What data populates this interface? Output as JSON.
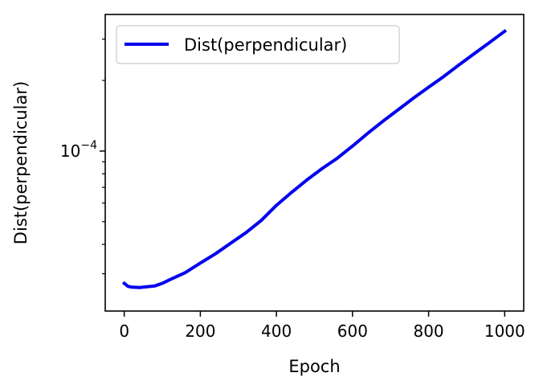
{
  "chart_data": {
    "type": "line",
    "xlabel": "Epoch",
    "ylabel": "Dist(perpendicular)",
    "xlim": [
      -50,
      1050
    ],
    "ylim": [
      2.08e-05,
      0.000382
    ],
    "yscale": "log",
    "grid": false,
    "legend_position": "top-left",
    "x_ticks": [
      {
        "value": 0,
        "label": "0"
      },
      {
        "value": 200,
        "label": "200"
      },
      {
        "value": 400,
        "label": "400"
      },
      {
        "value": 600,
        "label": "600"
      },
      {
        "value": 800,
        "label": "800"
      },
      {
        "value": 1000,
        "label": "1000"
      }
    ],
    "y_major_ticks": [
      {
        "value": 0.0001,
        "base": "10",
        "exponent": "−4"
      }
    ],
    "y_minor_ticks": [
      3e-05,
      4e-05,
      5e-05,
      6e-05,
      7e-05,
      8e-05,
      9e-05,
      0.0002,
      0.0003
    ],
    "series": [
      {
        "name": "Dist(perpendicular)",
        "color": "#0000ee",
        "x": [
          0,
          10,
          20,
          40,
          60,
          80,
          100,
          120,
          160,
          200,
          240,
          280,
          320,
          360,
          400,
          440,
          480,
          520,
          560,
          600,
          640,
          680,
          720,
          760,
          800,
          840,
          880,
          920,
          960,
          1000
        ],
        "y": [
          2.73e-05,
          2.65e-05,
          2.63e-05,
          2.62e-05,
          2.64e-05,
          2.66e-05,
          2.73e-05,
          2.83e-05,
          3.03e-05,
          3.33e-05,
          3.65e-05,
          4.05e-05,
          4.49e-05,
          5.06e-05,
          5.87e-05,
          6.67e-05,
          7.53e-05,
          8.42e-05,
          9.32e-05,
          0.000105,
          0.000119,
          0.000134,
          0.00015,
          0.000168,
          0.000187,
          0.000208,
          0.000233,
          0.00026,
          0.00029,
          0.000324
        ]
      }
    ]
  }
}
